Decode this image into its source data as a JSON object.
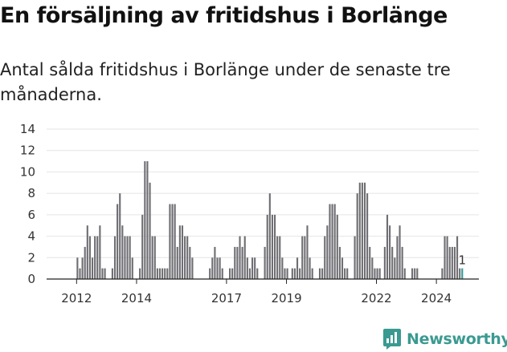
{
  "header": {
    "title": "En försäljning av fritidshus i Borlänge",
    "subtitle": "Antal sålda fritidshus i Borlänge under de senaste tre månaderna."
  },
  "brand": {
    "name": "Newsworthy",
    "color": "#3a9a91"
  },
  "colors": {
    "bar": "#6e6d72",
    "highlight": "#2f9c95",
    "grid": "#e4e4e4"
  },
  "chart_data": {
    "type": "bar",
    "title": "En försäljning av fritidshus i Borlänge",
    "subtitle": "Antal sålda fritidshus i Borlänge under de senaste tre månaderna.",
    "x_start": "2011-01",
    "x_end": "2025-05",
    "xticks": [
      "2012",
      "2014",
      "2017",
      "2019",
      "2022",
      "2024"
    ],
    "xtick_dates": [
      "2012-01",
      "2014-01",
      "2017-01",
      "2019-01",
      "2022-01",
      "2024-01"
    ],
    "ylim": [
      0,
      14
    ],
    "yticks": [
      0,
      2,
      4,
      6,
      8,
      10,
      12,
      14
    ],
    "grid": true,
    "series": [
      {
        "values": [
          {
            "x": "2012-01",
            "y": 2
          },
          {
            "x": "2012-02",
            "y": 1
          },
          {
            "x": "2012-03",
            "y": 2
          },
          {
            "x": "2012-04",
            "y": 3
          },
          {
            "x": "2012-05",
            "y": 5
          },
          {
            "x": "2012-06",
            "y": 4
          },
          {
            "x": "2012-07",
            "y": 2
          },
          {
            "x": "2012-08",
            "y": 4
          },
          {
            "x": "2012-09",
            "y": 4
          },
          {
            "x": "2012-10",
            "y": 5
          },
          {
            "x": "2012-11",
            "y": 1
          },
          {
            "x": "2012-12",
            "y": 1
          },
          {
            "x": "2013-03",
            "y": 1
          },
          {
            "x": "2013-04",
            "y": 4
          },
          {
            "x": "2013-05",
            "y": 7
          },
          {
            "x": "2013-06",
            "y": 8
          },
          {
            "x": "2013-07",
            "y": 5
          },
          {
            "x": "2013-08",
            "y": 4
          },
          {
            "x": "2013-09",
            "y": 4
          },
          {
            "x": "2013-10",
            "y": 4
          },
          {
            "x": "2013-11",
            "y": 2
          },
          {
            "x": "2014-02",
            "y": 1
          },
          {
            "x": "2014-03",
            "y": 6
          },
          {
            "x": "2014-04",
            "y": 11
          },
          {
            "x": "2014-05",
            "y": 11
          },
          {
            "x": "2014-06",
            "y": 9
          },
          {
            "x": "2014-07",
            "y": 4
          },
          {
            "x": "2014-08",
            "y": 4
          },
          {
            "x": "2014-09",
            "y": 1
          },
          {
            "x": "2014-10",
            "y": 1
          },
          {
            "x": "2014-11",
            "y": 1
          },
          {
            "x": "2014-12",
            "y": 1
          },
          {
            "x": "2015-01",
            "y": 1
          },
          {
            "x": "2015-02",
            "y": 7
          },
          {
            "x": "2015-03",
            "y": 7
          },
          {
            "x": "2015-04",
            "y": 7
          },
          {
            "x": "2015-05",
            "y": 3
          },
          {
            "x": "2015-06",
            "y": 5
          },
          {
            "x": "2015-07",
            "y": 5
          },
          {
            "x": "2015-08",
            "y": 4
          },
          {
            "x": "2015-09",
            "y": 4
          },
          {
            "x": "2015-10",
            "y": 3
          },
          {
            "x": "2015-11",
            "y": 2
          },
          {
            "x": "2016-06",
            "y": 1
          },
          {
            "x": "2016-07",
            "y": 2
          },
          {
            "x": "2016-08",
            "y": 3
          },
          {
            "x": "2016-09",
            "y": 2
          },
          {
            "x": "2016-10",
            "y": 2
          },
          {
            "x": "2016-11",
            "y": 1
          },
          {
            "x": "2017-02",
            "y": 1
          },
          {
            "x": "2017-03",
            "y": 1
          },
          {
            "x": "2017-04",
            "y": 3
          },
          {
            "x": "2017-05",
            "y": 3
          },
          {
            "x": "2017-06",
            "y": 4
          },
          {
            "x": "2017-07",
            "y": 3
          },
          {
            "x": "2017-08",
            "y": 4
          },
          {
            "x": "2017-09",
            "y": 2
          },
          {
            "x": "2017-10",
            "y": 1
          },
          {
            "x": "2017-11",
            "y": 2
          },
          {
            "x": "2017-12",
            "y": 2
          },
          {
            "x": "2018-01",
            "y": 1
          },
          {
            "x": "2018-04",
            "y": 3
          },
          {
            "x": "2018-05",
            "y": 6
          },
          {
            "x": "2018-06",
            "y": 8
          },
          {
            "x": "2018-07",
            "y": 6
          },
          {
            "x": "2018-08",
            "y": 6
          },
          {
            "x": "2018-09",
            "y": 4
          },
          {
            "x": "2018-10",
            "y": 4
          },
          {
            "x": "2018-11",
            "y": 2
          },
          {
            "x": "2018-12",
            "y": 1
          },
          {
            "x": "2019-01",
            "y": 1
          },
          {
            "x": "2019-03",
            "y": 1
          },
          {
            "x": "2019-04",
            "y": 1
          },
          {
            "x": "2019-05",
            "y": 2
          },
          {
            "x": "2019-06",
            "y": 1
          },
          {
            "x": "2019-07",
            "y": 4
          },
          {
            "x": "2019-08",
            "y": 4
          },
          {
            "x": "2019-09",
            "y": 5
          },
          {
            "x": "2019-10",
            "y": 2
          },
          {
            "x": "2019-11",
            "y": 1
          },
          {
            "x": "2020-02",
            "y": 1
          },
          {
            "x": "2020-03",
            "y": 1
          },
          {
            "x": "2020-04",
            "y": 4
          },
          {
            "x": "2020-05",
            "y": 5
          },
          {
            "x": "2020-06",
            "y": 7
          },
          {
            "x": "2020-07",
            "y": 7
          },
          {
            "x": "2020-08",
            "y": 7
          },
          {
            "x": "2020-09",
            "y": 6
          },
          {
            "x": "2020-10",
            "y": 3
          },
          {
            "x": "2020-11",
            "y": 2
          },
          {
            "x": "2020-12",
            "y": 1
          },
          {
            "x": "2021-01",
            "y": 1
          },
          {
            "x": "2021-04",
            "y": 4
          },
          {
            "x": "2021-05",
            "y": 8
          },
          {
            "x": "2021-06",
            "y": 9
          },
          {
            "x": "2021-07",
            "y": 9
          },
          {
            "x": "2021-08",
            "y": 9
          },
          {
            "x": "2021-09",
            "y": 8
          },
          {
            "x": "2021-10",
            "y": 3
          },
          {
            "x": "2021-11",
            "y": 2
          },
          {
            "x": "2021-12",
            "y": 1
          },
          {
            "x": "2022-01",
            "y": 1
          },
          {
            "x": "2022-02",
            "y": 1
          },
          {
            "x": "2022-04",
            "y": 3
          },
          {
            "x": "2022-05",
            "y": 6
          },
          {
            "x": "2022-06",
            "y": 5
          },
          {
            "x": "2022-07",
            "y": 3
          },
          {
            "x": "2022-08",
            "y": 2
          },
          {
            "x": "2022-09",
            "y": 4
          },
          {
            "x": "2022-10",
            "y": 5
          },
          {
            "x": "2022-11",
            "y": 3
          },
          {
            "x": "2022-12",
            "y": 1
          },
          {
            "x": "2023-03",
            "y": 1
          },
          {
            "x": "2023-04",
            "y": 1
          },
          {
            "x": "2023-05",
            "y": 1
          },
          {
            "x": "2024-03",
            "y": 1
          },
          {
            "x": "2024-04",
            "y": 4
          },
          {
            "x": "2024-05",
            "y": 4
          },
          {
            "x": "2024-06",
            "y": 3
          },
          {
            "x": "2024-07",
            "y": 3
          },
          {
            "x": "2024-08",
            "y": 3
          },
          {
            "x": "2024-09",
            "y": 4
          },
          {
            "x": "2024-10",
            "y": 1
          },
          {
            "x": "2024-11",
            "y": 1,
            "highlight": true,
            "label": "1"
          }
        ]
      }
    ]
  }
}
